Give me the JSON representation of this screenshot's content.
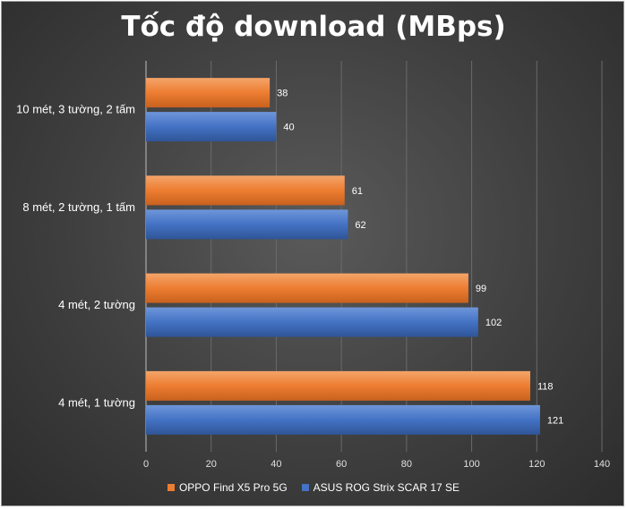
{
  "chart_data": {
    "type": "bar",
    "orientation": "horizontal",
    "title": "Tốc độ download (MBps)",
    "categories": [
      "10 mét, 3 tường, 2 tấm",
      "8 mét, 2 tường, 1 tấm",
      "4 mét, 2 tường",
      "4 mét, 1 tường"
    ],
    "series": [
      {
        "name": "OPPO Find X5 Pro 5G",
        "color": "#ED7D31",
        "values": [
          38,
          61,
          99,
          118
        ]
      },
      {
        "name": "ASUS ROG Strix SCAR 17 SE",
        "color": "#4472C4",
        "values": [
          40,
          62,
          102,
          121
        ]
      }
    ],
    "xlim": [
      0,
      140
    ],
    "xticks": [
      0,
      20,
      40,
      60,
      80,
      100,
      120,
      140
    ],
    "grid": true,
    "legend_position": "bottom"
  }
}
